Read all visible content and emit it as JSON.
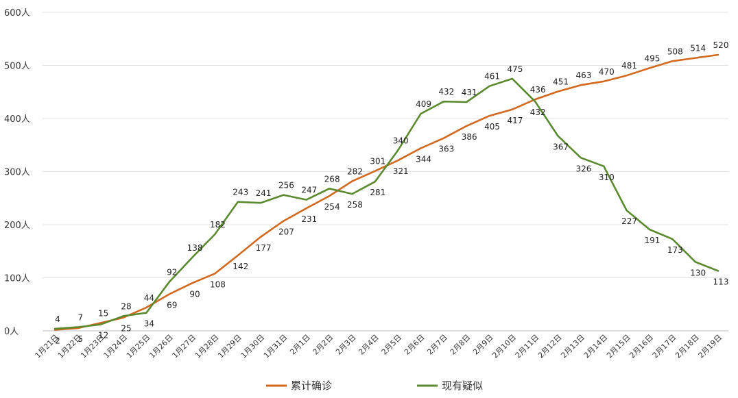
{
  "chart_data": {
    "type": "line",
    "title": "",
    "xlabel": "",
    "ylabel": "",
    "categories": [
      "1月21日",
      "1月22日",
      "1月23日",
      "1月24日",
      "1月25日",
      "1月26日",
      "1月27日",
      "1月28日",
      "1月29日",
      "1月30日",
      "1月31日",
      "2月1日",
      "2月2日",
      "2月3日",
      "2月4日",
      "2月5日",
      "2月6日",
      "2月7日",
      "2月8日",
      "2月9日",
      "2月10日",
      "2月11日",
      "2月12日",
      "2月13日",
      "2月14日",
      "2月15日",
      "2月16日",
      "2月17日",
      "2月18日",
      "2月19日"
    ],
    "yticks": [
      "0人",
      "100人",
      "200人",
      "300人",
      "400人",
      "500人",
      "600人"
    ],
    "ylim": [
      0,
      600
    ],
    "grid": true,
    "legend_position": "bottom",
    "series": [
      {
        "name": "累计确诊",
        "color": "#d2691e",
        "values": [
          2,
          5,
          15,
          25,
          44,
          69,
          90,
          108,
          142,
          177,
          207,
          231,
          254,
          282,
          301,
          321,
          344,
          363,
          386,
          405,
          417,
          436,
          451,
          463,
          470,
          481,
          495,
          508,
          514,
          520
        ]
      },
      {
        "name": "现有疑似",
        "color": "#5b8a2e",
        "values": [
          4,
          7,
          12,
          28,
          34,
          92,
          138,
          182,
          243,
          241,
          256,
          247,
          268,
          258,
          281,
          340,
          409,
          432,
          431,
          461,
          475,
          432,
          367,
          326,
          310,
          227,
          191,
          173,
          130,
          113
        ]
      }
    ]
  }
}
